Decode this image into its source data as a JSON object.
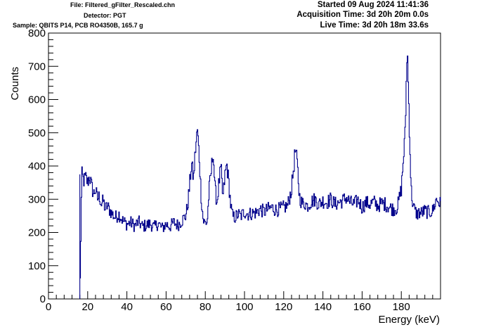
{
  "header": {
    "file": "File: Filtered_gFilter_Rescaled.chn",
    "detector": "Detector: PGT",
    "sample": "Sample: QBITS P14, PCB RO4350B, 165.7 g",
    "started": "Started 09 Aug 2024 11:41:36",
    "acquisition_time": "Acquisition Time: 3d 20h 20m 0.0s",
    "live_time": "Live Time: 3d 20h 18m 33.6s"
  },
  "colors": {
    "series": "#00008b",
    "axis": "#000000"
  },
  "chart_data": {
    "type": "line",
    "title": "",
    "xlabel": "Energy (keV)",
    "ylabel": "Counts",
    "xlim": [
      0,
      200
    ],
    "ylim": [
      0,
      800
    ],
    "x_ticks": [
      0,
      20,
      40,
      60,
      80,
      100,
      120,
      140,
      160,
      180
    ],
    "y_ticks": [
      0,
      100,
      200,
      300,
      400,
      500,
      600,
      700,
      800
    ],
    "grid": false,
    "series": [
      {
        "name": "",
        "x": [
          16,
          17,
          18,
          19,
          20,
          21,
          22,
          23,
          24,
          25,
          26,
          27,
          28,
          29,
          30,
          32,
          34,
          36,
          38,
          40,
          42,
          44,
          46,
          48,
          50,
          52,
          54,
          56,
          58,
          60,
          62,
          64,
          66,
          68,
          70,
          71,
          72,
          73,
          74,
          75,
          76,
          77,
          78,
          79,
          80,
          81,
          82,
          83,
          84,
          85,
          86,
          87,
          88,
          89,
          90,
          91,
          92,
          93,
          94,
          95,
          96,
          97,
          98,
          100,
          102,
          104,
          106,
          108,
          110,
          112,
          114,
          116,
          118,
          120,
          122,
          124,
          126,
          127,
          128,
          129,
          130,
          131,
          132,
          134,
          136,
          138,
          140,
          142,
          144,
          146,
          148,
          150,
          152,
          154,
          156,
          158,
          160,
          162,
          164,
          166,
          168,
          170,
          172,
          174,
          176,
          178,
          180,
          182,
          183,
          184,
          185,
          186,
          187,
          188,
          189,
          190,
          192,
          194,
          196,
          198,
          200
        ],
        "values": [
          0,
          375,
          355,
          365,
          350,
          370,
          340,
          315,
          330,
          300,
          310,
          285,
          295,
          270,
          280,
          260,
          245,
          255,
          235,
          225,
          230,
          220,
          232,
          218,
          222,
          226,
          215,
          228,
          212,
          225,
          218,
          230,
          222,
          235,
          250,
          280,
          340,
          410,
          360,
          450,
          508,
          420,
          300,
          235,
          228,
          232,
          330,
          380,
          445,
          330,
          290,
          350,
          395,
          300,
          370,
          405,
          350,
          280,
          248,
          245,
          250,
          255,
          248,
          262,
          255,
          258,
          260,
          270,
          262,
          270,
          275,
          268,
          270,
          275,
          280,
          330,
          450,
          400,
          310,
          292,
          285,
          288,
          280,
          292,
          300,
          285,
          295,
          290,
          300,
          285,
          290,
          295,
          305,
          290,
          285,
          298,
          275,
          290,
          285,
          292,
          280,
          288,
          285,
          275,
          270,
          275,
          330,
          500,
          765,
          550,
          330,
          280,
          265,
          255,
          260,
          258,
          265,
          260,
          265,
          300,
          285
        ]
      }
    ]
  }
}
